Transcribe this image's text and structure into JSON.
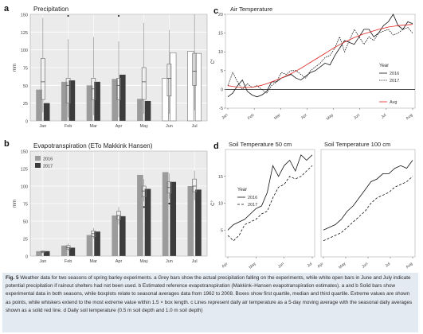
{
  "chart_data": [
    {
      "panel": "a",
      "type": "bar",
      "title": "Precipitation",
      "ylabel": "mm",
      "ylim": [
        0,
        150
      ],
      "yticks": [
        0,
        25,
        50,
        75,
        100,
        125,
        150
      ],
      "categories": [
        "Jan",
        "Feb",
        "Mar",
        "Apr",
        "May",
        "Jun",
        "Jul"
      ],
      "series": [
        {
          "name": "2016",
          "values": [
            44,
            55,
            50,
            59,
            31,
            18,
            98
          ]
        },
        {
          "name": "2017",
          "values": [
            25,
            57,
            55,
            65,
            28,
            17,
            95
          ]
        }
      ],
      "open_bars": {
        "Jun": [
          60,
          96
        ],
        "Jul": [
          98,
          95
        ]
      },
      "boxplots": [
        {
          "min": 12,
          "q1": 30,
          "median": 55,
          "q3": 88,
          "max": 145
        },
        {
          "min": 5,
          "q1": 25,
          "median": 50,
          "q3": 60,
          "max": 115,
          "outliers": [
            160
          ]
        },
        {
          "min": 8,
          "q1": 30,
          "median": 45,
          "q3": 60,
          "max": 118
        },
        {
          "min": 5,
          "q1": 30,
          "median": 50,
          "q3": 60,
          "max": 112,
          "outliers": [
            148
          ]
        },
        {
          "min": 10,
          "q1": 30,
          "median": 55,
          "q3": 75,
          "max": 138
        },
        {
          "min": 10,
          "q1": 35,
          "median": 60,
          "q3": 80,
          "max": 128
        },
        {
          "min": 15,
          "q1": 50,
          "median": 70,
          "q3": 95,
          "max": 150
        }
      ]
    },
    {
      "panel": "b",
      "type": "bar",
      "title": "Evapotranspiration (ETo Makkink Hansen)",
      "ylabel": "mm",
      "ylim": [
        0,
        150
      ],
      "yticks": [
        0,
        25,
        50,
        75,
        100,
        125,
        150
      ],
      "categories": [
        "Jan",
        "Feb",
        "Mar",
        "Apr",
        "May",
        "Jun",
        "Jul"
      ],
      "series": [
        {
          "name": "2016",
          "values": [
            7,
            15,
            30,
            58,
            116,
            120,
            100
          ]
        },
        {
          "name": "2017",
          "values": [
            7,
            12,
            35,
            57,
            96,
            106,
            95
          ]
        }
      ],
      "boxplots": [
        {
          "min": 4,
          "q1": 5,
          "median": 6,
          "q3": 7,
          "max": 8
        },
        {
          "min": 8,
          "q1": 10,
          "median": 12,
          "q3": 15,
          "max": 18
        },
        {
          "min": 25,
          "q1": 28,
          "median": 32,
          "q3": 36,
          "max": 40
        },
        {
          "min": 45,
          "q1": 52,
          "median": 58,
          "q3": 64,
          "max": 70
        },
        {
          "min": 78,
          "q1": 85,
          "median": 93,
          "q3": 100,
          "max": 110,
          "outliers": [
            70
          ]
        },
        {
          "min": 82,
          "q1": 90,
          "median": 98,
          "q3": 106,
          "max": 118,
          "outliers": [
            75
          ]
        },
        {
          "min": 80,
          "q1": 92,
          "median": 100,
          "q3": 110,
          "max": 122
        }
      ],
      "legend": [
        "2016",
        "2017"
      ]
    },
    {
      "panel": "c",
      "type": "line",
      "title": "Air Temperature",
      "ylabel": "C°",
      "ylim": [
        -5,
        20
      ],
      "yticks": [
        -5,
        0,
        5,
        10,
        15,
        20
      ],
      "xticks": [
        "Jan",
        "Feb",
        "Mar",
        "Apr",
        "May",
        "Jun",
        "Jul",
        "Aug"
      ],
      "legend_title": "Year",
      "series": [
        {
          "name": "2016",
          "style": "solid",
          "values": [
            -2,
            -1,
            1,
            2.5,
            -0.5,
            -1.5,
            -2,
            -1.5,
            -0.5,
            2,
            2,
            3,
            3.5,
            4,
            3,
            2.5,
            3.5,
            4.5,
            5,
            6,
            7,
            6.5,
            9,
            11,
            13,
            12.5,
            12,
            14,
            16,
            16,
            14,
            15,
            17,
            18,
            20,
            17,
            16,
            18,
            17.5
          ]
        },
        {
          "name": "2017",
          "style": "dotted",
          "values": [
            1,
            4.5,
            2,
            0,
            1.5,
            0.5,
            1,
            0,
            -1,
            1,
            2,
            4.5,
            4,
            5,
            5,
            4,
            3,
            5,
            6,
            7,
            8.5,
            9,
            11,
            14,
            10,
            13,
            16,
            14,
            12,
            14,
            13,
            15,
            15.5,
            16,
            14.5,
            15,
            16,
            16.5,
            15
          ]
        },
        {
          "name": "Avg",
          "style": "red",
          "values": [
            1,
            0.8,
            0.6,
            0.5,
            0.5,
            0.6,
            0.8,
            1.1,
            1.5,
            2,
            2.5,
            3,
            3.6,
            4.2,
            4.9,
            5.6,
            6.4,
            7.2,
            8,
            8.8,
            9.6,
            10.4,
            11.2,
            11.9,
            12.6,
            13.2,
            13.8,
            14.3,
            14.8,
            15.2,
            15.6,
            16,
            16.3,
            16.6,
            16.8,
            17,
            17.1,
            17.2,
            17.3
          ]
        }
      ]
    },
    {
      "panel": "d",
      "type": "line",
      "title": "Soil Temperature 50 cm",
      "ylabel": "C°",
      "ylim": [
        0,
        20
      ],
      "yticks": [
        5,
        10,
        15
      ],
      "xticks": [
        "Apr",
        "May",
        "Jun",
        "Jul"
      ],
      "legend_title": "Year",
      "series": [
        {
          "name": "2016",
          "style": "solid",
          "values": [
            5,
            6,
            6.5,
            7,
            8,
            9,
            9.5,
            12,
            17,
            15,
            17,
            18,
            16,
            19,
            18,
            19
          ]
        },
        {
          "name": "2017",
          "style": "dashed",
          "values": [
            4,
            3,
            4,
            6,
            6.5,
            7,
            8,
            8.5,
            11,
            13,
            13.5,
            15,
            14.5,
            15,
            16,
            17
          ]
        }
      ]
    },
    {
      "panel": "d2",
      "type": "line",
      "title": "Soil Temperature 100 cm",
      "ylim": [
        0,
        20
      ],
      "xticks": [
        "Apr",
        "May",
        "Jun",
        "Jul",
        "Aug"
      ],
      "series": [
        {
          "name": "2016",
          "style": "solid",
          "values": [
            5,
            5.5,
            6,
            7,
            8.5,
            9.5,
            11,
            12.5,
            14,
            14.5,
            15.5,
            15.5,
            16.5,
            17,
            16.5,
            18
          ]
        },
        {
          "name": "2017",
          "style": "dashed",
          "values": [
            3,
            3.5,
            4,
            4.5,
            5.5,
            6.5,
            7.5,
            8.5,
            10,
            11,
            11.5,
            12,
            13,
            13.5,
            14,
            15
          ]
        }
      ]
    }
  ],
  "panel_letters": [
    "a",
    "b",
    "c",
    "d"
  ],
  "caption": {
    "lead": "Fig. 5",
    "body": "Weather data for two seasons of spring barley experiments. a Grey bars show the actual precipitation falling on the experiments, while white open bars in June and July indicate potential precipitation if rainout shelters had not been used. b Estimated reference evapotranspiration (Makkink–Hansen evapotranspiration estimates). a and b Solid bars show experimental data in both seasons, while boxplots relate to seasonal averages data from 1962 to 2008. Boxes show first quartile, median and third quartile. Extreme values are shown as points, while whiskers extend to the most extreme value within 1.5 × box length. c Lines represent daily air temperature as a 5-day moving average with the seasonal daily averages shown as a solid red line. d Daily soil temperature (0.5 m soil depth and 1.0 m soil depth)"
  }
}
